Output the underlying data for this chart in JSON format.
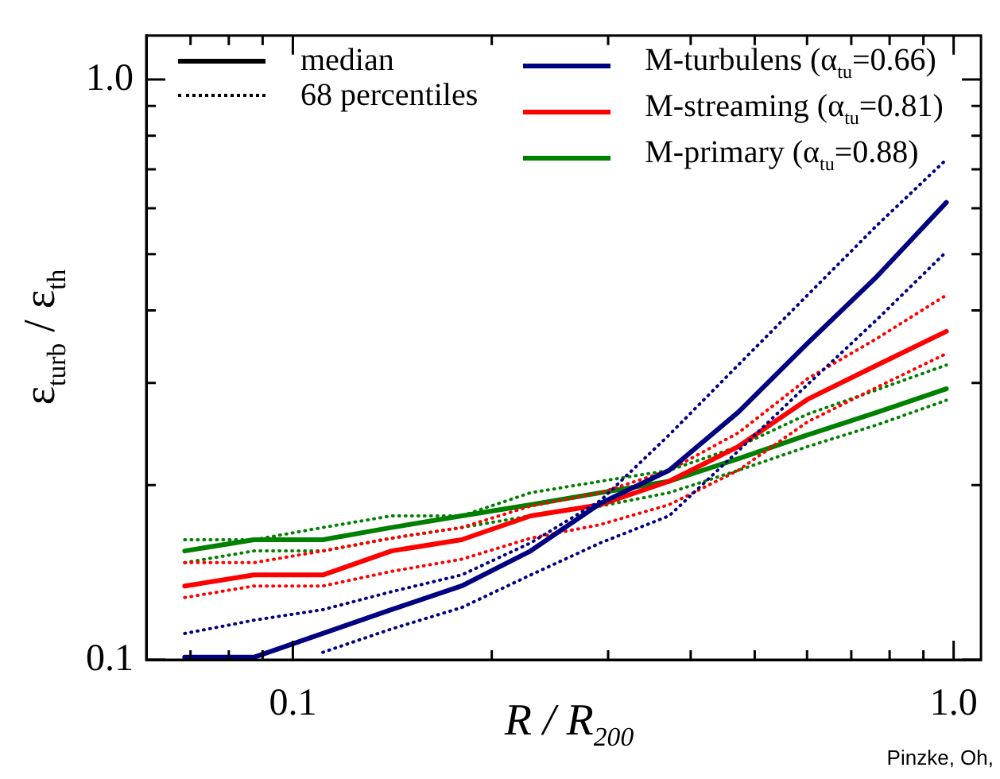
{
  "chart_data": {
    "type": "line",
    "xlabel": "R / R$_{200}$",
    "ylabel": "ε$_{turb}$ / ε$_{th}$",
    "annotations": [
      "Pinzke, Oh,"
    ],
    "x": [
      0.0686,
      0.0873,
      0.111,
      0.141,
      0.18,
      0.229,
      0.292,
      0.371,
      0.472,
      0.601,
      0.766,
      0.975
    ],
    "series": [
      {
        "name": "median",
        "color": "#000000",
        "line_style": "solid",
        "values": [
          null,
          null,
          null,
          null,
          null,
          null,
          null,
          null,
          null,
          null,
          null,
          null
        ]
      },
      {
        "name": "68 percentiles",
        "color": "#000000",
        "line_style": "dotted",
        "values": [
          null,
          null,
          null,
          null,
          null,
          null,
          null,
          null,
          null,
          null,
          null,
          null
        ]
      },
      {
        "name": "M-turbulens (α$_{tu}$=0.66)",
        "color": "#000080",
        "line_style": "solid",
        "values": [
          0.101,
          0.101,
          0.111,
          0.122,
          0.134,
          0.154,
          0.186,
          0.212,
          0.267,
          0.351,
          0.458,
          0.614
        ]
      },
      {
        "color": "#000080",
        "line_style": "dotted",
        "values": [
          0.111,
          0.117,
          0.122,
          0.131,
          0.14,
          0.159,
          0.188,
          0.244,
          0.322,
          0.425,
          0.561,
          0.728
        ]
      },
      {
        "color": "#000080",
        "line_style": "dotted",
        "values": [
          null,
          null,
          0.103,
          0.113,
          0.123,
          0.14,
          0.159,
          0.177,
          0.229,
          0.298,
          0.386,
          0.505
        ]
      },
      {
        "name": "M-streaming (α$_{tu}$=0.81)",
        "color": "#ff0000",
        "line_style": "solid",
        "values": [
          0.134,
          0.14,
          0.14,
          0.154,
          0.161,
          0.177,
          0.185,
          0.203,
          0.233,
          0.281,
          0.322,
          0.368
        ]
      },
      {
        "color": "#ff0000",
        "line_style": "dotted",
        "values": [
          0.147,
          0.147,
          0.154,
          0.162,
          0.169,
          0.184,
          0.194,
          0.212,
          0.246,
          0.305,
          0.358,
          0.425
        ]
      },
      {
        "color": "#ff0000",
        "line_style": "dotted",
        "values": [
          0.128,
          0.134,
          0.134,
          0.142,
          0.149,
          0.162,
          0.171,
          0.185,
          0.212,
          0.257,
          0.295,
          0.337
        ]
      },
      {
        "name": "M-primary (α$_{tu}$=0.88)",
        "color": "#008000",
        "line_style": "solid",
        "values": [
          0.154,
          0.161,
          0.161,
          0.169,
          0.177,
          0.185,
          0.194,
          0.203,
          0.222,
          0.244,
          0.267,
          0.293
        ]
      },
      {
        "color": "#008000",
        "line_style": "dotted",
        "values": [
          0.161,
          0.161,
          0.169,
          0.177,
          0.177,
          0.194,
          0.203,
          0.212,
          0.233,
          0.265,
          0.292,
          0.322
        ]
      },
      {
        "color": "#008000",
        "line_style": "dotted",
        "values": [
          0.147,
          0.154,
          0.154,
          0.162,
          0.169,
          0.177,
          0.184,
          0.194,
          0.212,
          0.233,
          0.254,
          0.28
        ]
      }
    ],
    "xlim": [
      0.06,
      1.1
    ],
    "ylim": [
      0.1,
      1.19
    ],
    "xticks": [
      {
        "value": 0.07,
        "label": null
      },
      {
        "value": 0.08,
        "label": null
      },
      {
        "value": 0.09,
        "label": null
      },
      0.1,
      {
        "value": 0.2,
        "label": null
      },
      {
        "value": 0.3,
        "label": null
      },
      {
        "value": 0.4,
        "label": null
      },
      {
        "value": 0.5,
        "label": null
      },
      {
        "value": 0.6,
        "label": null
      },
      {
        "value": 0.7,
        "label": null
      },
      {
        "value": 0.8,
        "label": null
      },
      {
        "value": 0.9,
        "label": null
      },
      {
        "value": 1,
        "label": "1.0"
      }
    ],
    "yticks": [
      0.1,
      {
        "value": 0.2,
        "label": null
      },
      {
        "value": 0.3,
        "label": null
      },
      {
        "value": 0.4,
        "label": null
      },
      {
        "value": 0.5,
        "label": null
      },
      {
        "value": 0.6,
        "label": null
      },
      {
        "value": 0.7,
        "label": null
      },
      {
        "value": 0.8,
        "label": null
      },
      {
        "value": 0.9,
        "label": null
      },
      {
        "value": 1,
        "label": "1.0"
      }
    ],
    "log": "xy",
    "grid": false,
    "legend": "top",
    "marker": "none"
  }
}
